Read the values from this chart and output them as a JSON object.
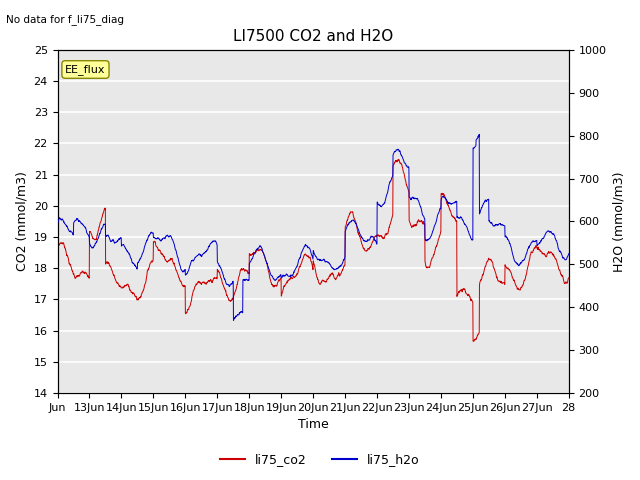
{
  "title": "LI7500 CO2 and H2O",
  "top_left_text": "No data for f_li75_diag",
  "xlabel": "Time",
  "ylabel_left": "CO2 (mmol/m3)",
  "ylabel_right": "H2O (mmol/m3)",
  "ylim_left": [
    14.0,
    25.0
  ],
  "ylim_right": [
    200,
    1000
  ],
  "yticks_left": [
    14.0,
    15.0,
    16.0,
    17.0,
    18.0,
    19.0,
    20.0,
    21.0,
    22.0,
    23.0,
    24.0,
    25.0
  ],
  "yticks_right": [
    200,
    300,
    400,
    500,
    600,
    700,
    800,
    900,
    1000
  ],
  "xtick_labels": [
    "Jun",
    "13Jun",
    "14Jun",
    "15Jun",
    "16Jun",
    "17Jun",
    "18Jun",
    "19Jun",
    "20Jun",
    "21Jun",
    "22Jun",
    "23Jun",
    "24Jun",
    "25Jun",
    "26Jun",
    "27Jun",
    "28"
  ],
  "legend_label_co2": "li75_co2",
  "legend_label_h2o": "li75_h2o",
  "color_co2": "#cc0000",
  "color_h2o": "#0000cc",
  "inset_label": "EE_flux",
  "inset_color": "#ffff99",
  "background_color": "#e8e8e8",
  "plot_bg_color": "#ffffff",
  "grid_color": "#ffffff",
  "title_fontsize": 11,
  "axis_fontsize": 9,
  "tick_fontsize": 8
}
